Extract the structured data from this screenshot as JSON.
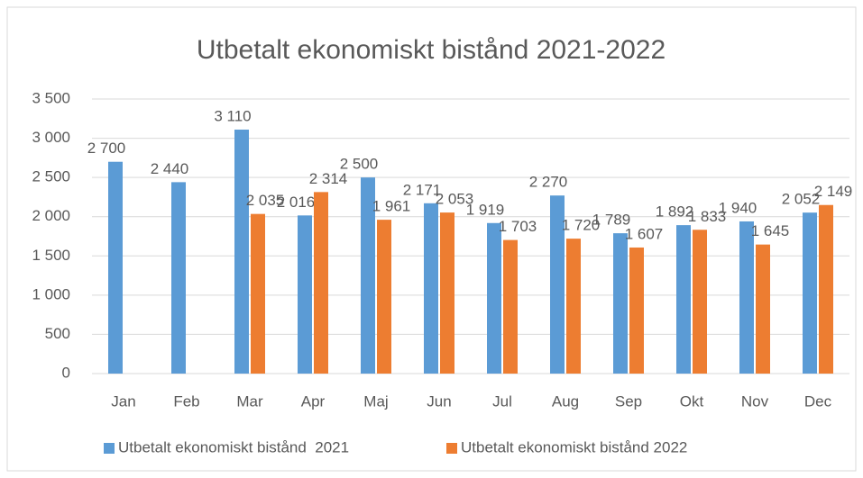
{
  "chart_data": {
    "type": "bar",
    "title": "Utbetalt ekonomiskt bistånd 2021-2022",
    "categories": [
      "Jan",
      "Feb",
      "Mar",
      "Apr",
      "Maj",
      "Jun",
      "Jul",
      "Aug",
      "Sep",
      "Okt",
      "Nov",
      "Dec"
    ],
    "series": [
      {
        "name": "Utbetalt ekonomiskt bistånd  2021",
        "color": "#5b9bd5",
        "values": [
          2700,
          2440,
          3110,
          2016,
          2500,
          2171,
          1919,
          2270,
          1789,
          1892,
          1940,
          2052
        ],
        "value_labels": [
          "2 700",
          "2 440",
          "3 110",
          "2 016",
          "2 500",
          "2 171",
          "1 919",
          "2 270",
          "1 789",
          "1 892",
          "1 940",
          "2 052"
        ]
      },
      {
        "name": "Utbetalt ekonomiskt bistånd 2022",
        "color": "#ed7d31",
        "values": [
          null,
          null,
          2035,
          2314,
          1961,
          2053,
          1703,
          1720,
          1607,
          1833,
          1645,
          2149
        ],
        "value_labels": [
          null,
          null,
          "2 035",
          "2 314",
          "1 961",
          "2 053",
          "1 703",
          "1 720",
          "1 607",
          "1 833",
          "1 645",
          "2 149"
        ]
      }
    ],
    "ylim": [
      0,
      3500
    ],
    "yticks": [
      0,
      500,
      {
        "value": 1000,
        "label": "1 000"
      },
      {
        "value": 1500,
        "label": "1 500"
      },
      {
        "value": 2000,
        "label": "2 000"
      },
      {
        "value": 2500,
        "label": "2 500"
      },
      {
        "value": 3000,
        "label": "3 000"
      },
      {
        "value": 3500,
        "label": "3 500"
      }
    ],
    "grid": true,
    "legend": "bottom"
  }
}
